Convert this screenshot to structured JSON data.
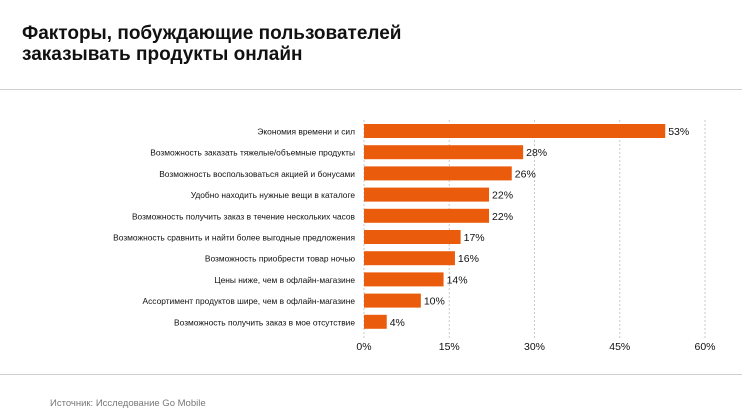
{
  "title_lines": [
    "Факторы, побуждающие пользователей",
    "заказывать продукты онлайн"
  ],
  "source": "Источник: Исследование Go Mobile",
  "colors": {
    "bar": "#EA5B0C",
    "grid": "#c8c8c8",
    "text": "#111111",
    "source_text": "#777777"
  },
  "chart_data": {
    "type": "bar",
    "orientation": "horizontal",
    "title": "Факторы, побуждающие пользователей заказывать продукты онлайн",
    "categories": [
      "Экономия времени и сил",
      "Возможность заказать тяжелые/объемные продукты",
      "Возможность воспользоваться акцией и бонусами",
      "Удобно находить нужные вещи в каталоге",
      "Возможность получить заказ в течение нескольких часов",
      "Возможность сравнить и найти   более выгодные предложения",
      "Возможность приобрести товар ночью",
      "Цены ниже, чем в офлайн-магазине",
      "Ассортимент продуктов шире, чем в офлайн-магазине",
      "Возможность получить заказ в мое отсутствие"
    ],
    "values": [
      53,
      28,
      26,
      22,
      22,
      17,
      16,
      14,
      10,
      4
    ],
    "value_labels": [
      "53%",
      "28%",
      "26%",
      "22%",
      "22%",
      "17%",
      "16%",
      "14%",
      "10%",
      "4%"
    ],
    "xlim": [
      0,
      60
    ],
    "xticks": [
      0,
      15,
      30,
      45,
      60
    ],
    "xtick_labels": [
      "0%",
      "15%",
      "30%",
      "45%",
      "60%"
    ],
    "xlabel": "",
    "ylabel": "",
    "grid": true,
    "legend": "none"
  }
}
